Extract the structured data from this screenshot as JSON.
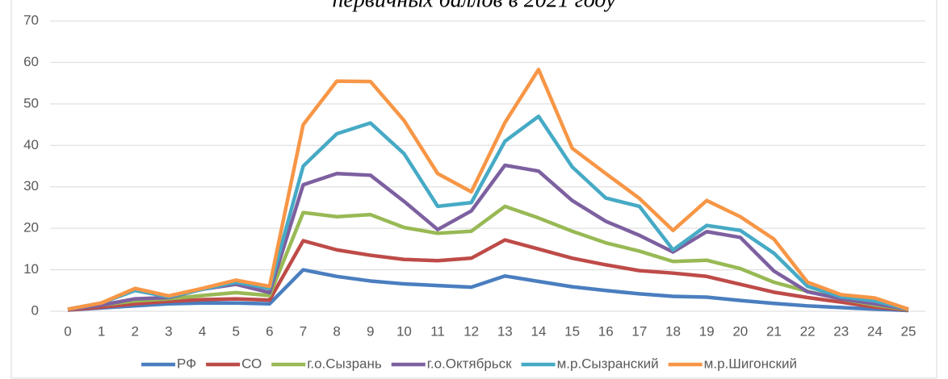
{
  "chart_data": {
    "type": "line",
    "title": "первичных баллов в 2021 году",
    "x": [
      0,
      1,
      2,
      3,
      4,
      5,
      6,
      7,
      8,
      9,
      10,
      11,
      12,
      13,
      14,
      15,
      16,
      17,
      18,
      19,
      20,
      21,
      22,
      23,
      24,
      25
    ],
    "xlim": [
      0,
      25
    ],
    "xticks": [
      0,
      1,
      2,
      3,
      4,
      5,
      6,
      7,
      8,
      9,
      10,
      11,
      12,
      13,
      14,
      15,
      16,
      17,
      18,
      19,
      20,
      21,
      22,
      23,
      24,
      25
    ],
    "ylim": [
      0,
      70
    ],
    "yticks": [
      0,
      10,
      20,
      30,
      40,
      50,
      60,
      70
    ],
    "grid": true,
    "legend": "bottom",
    "series": [
      {
        "name": "РФ",
        "color": "#4a7ebf",
        "values": [
          0.3,
          0.8,
          1.3,
          1.8,
          2,
          2,
          1.8,
          10,
          8.4,
          7.3,
          6.6,
          6.2,
          5.8,
          8.5,
          7.2,
          5.9,
          5,
          4.2,
          3.6,
          3.4,
          2.6,
          1.9,
          1.3,
          0.9,
          0.5,
          0.2
        ]
      },
      {
        "name": "СО",
        "color": "#be4b48",
        "values": [
          0.3,
          1,
          1.8,
          2.4,
          2.8,
          3,
          2.7,
          17,
          14.8,
          13.5,
          12.5,
          12.2,
          12.8,
          17.2,
          15,
          12.8,
          11.2,
          9.8,
          9.2,
          8.4,
          6.5,
          4.6,
          3.3,
          2.2,
          1,
          0.3
        ]
      },
      {
        "name": "г.о.Сызрань",
        "color": "#98b954",
        "values": [
          0.4,
          1.5,
          2.5,
          3,
          3.8,
          4.5,
          3.8,
          23.8,
          22.8,
          23.3,
          20.2,
          18.8,
          19.3,
          25.3,
          22.5,
          19.3,
          16.5,
          14.5,
          12,
          12.3,
          10.3,
          7,
          4.8,
          3,
          1.5,
          0.4
        ]
      },
      {
        "name": "г.о.Октябрьск",
        "color": "#7d60a0",
        "values": [
          0.4,
          1.5,
          3,
          3.3,
          5.3,
          6.5,
          4.5,
          30.5,
          33.2,
          32.8,
          26.5,
          19.7,
          24.2,
          35.2,
          33.8,
          26.7,
          21.7,
          18.3,
          14.3,
          19.2,
          17.8,
          9.7,
          4.7,
          3,
          1.8,
          0.5
        ]
      },
      {
        "name": "м.р.Сызранский",
        "color": "#46aac5",
        "values": [
          0.5,
          2,
          5,
          3.5,
          5.3,
          7,
          5.5,
          35,
          42.8,
          45.4,
          38,
          25.3,
          26.2,
          41,
          47,
          34.8,
          27.3,
          25.3,
          14.8,
          20.7,
          19.5,
          14,
          6,
          3.5,
          2.5,
          0.5
        ]
      },
      {
        "name": "м.р.Шигонский",
        "color": "#f79646",
        "values": [
          0.5,
          2,
          5.5,
          3.7,
          5.5,
          7.5,
          6,
          45,
          55.5,
          55.4,
          46,
          33.2,
          28.8,
          45.5,
          58.3,
          39.3,
          33.2,
          27.2,
          19.5,
          26.7,
          22.8,
          17.4,
          7,
          4,
          3.2,
          0.5
        ]
      }
    ]
  }
}
